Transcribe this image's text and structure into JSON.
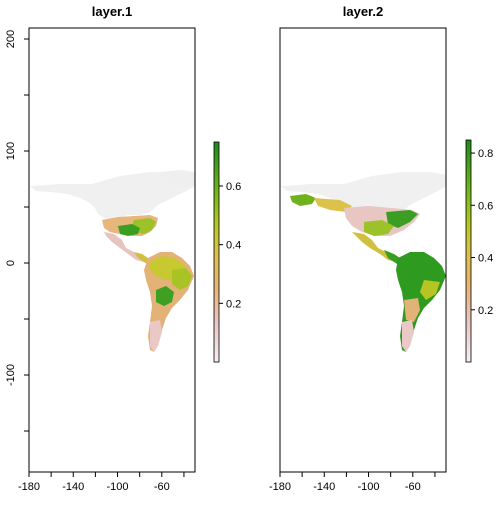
{
  "panels": [
    {
      "title": "layer.1",
      "x_ticks": [
        "-180",
        "-140",
        "-100",
        "-60"
      ],
      "y_ticks": [
        "200",
        "100",
        "0",
        "-100"
      ],
      "legend_ticks": [
        "0.2",
        "0.4",
        "0.6"
      ],
      "legend_range": [
        0.0,
        0.75
      ]
    },
    {
      "title": "layer.2",
      "x_ticks": [
        "-180",
        "-140",
        "-100",
        "-60"
      ],
      "y_ticks": [],
      "legend_ticks": [
        "0.2",
        "0.4",
        "0.6",
        "0.8"
      ],
      "legend_range": [
        0.0,
        0.85
      ]
    }
  ],
  "colors": {
    "ramp": [
      "#f2f2f2",
      "#e8c8c8",
      "#e8b070",
      "#d8c040",
      "#b8c820",
      "#78b818",
      "#2e9a1e",
      "#1f8a1a"
    ],
    "land_none": "#f1f1f1",
    "frame": "#000000"
  }
}
